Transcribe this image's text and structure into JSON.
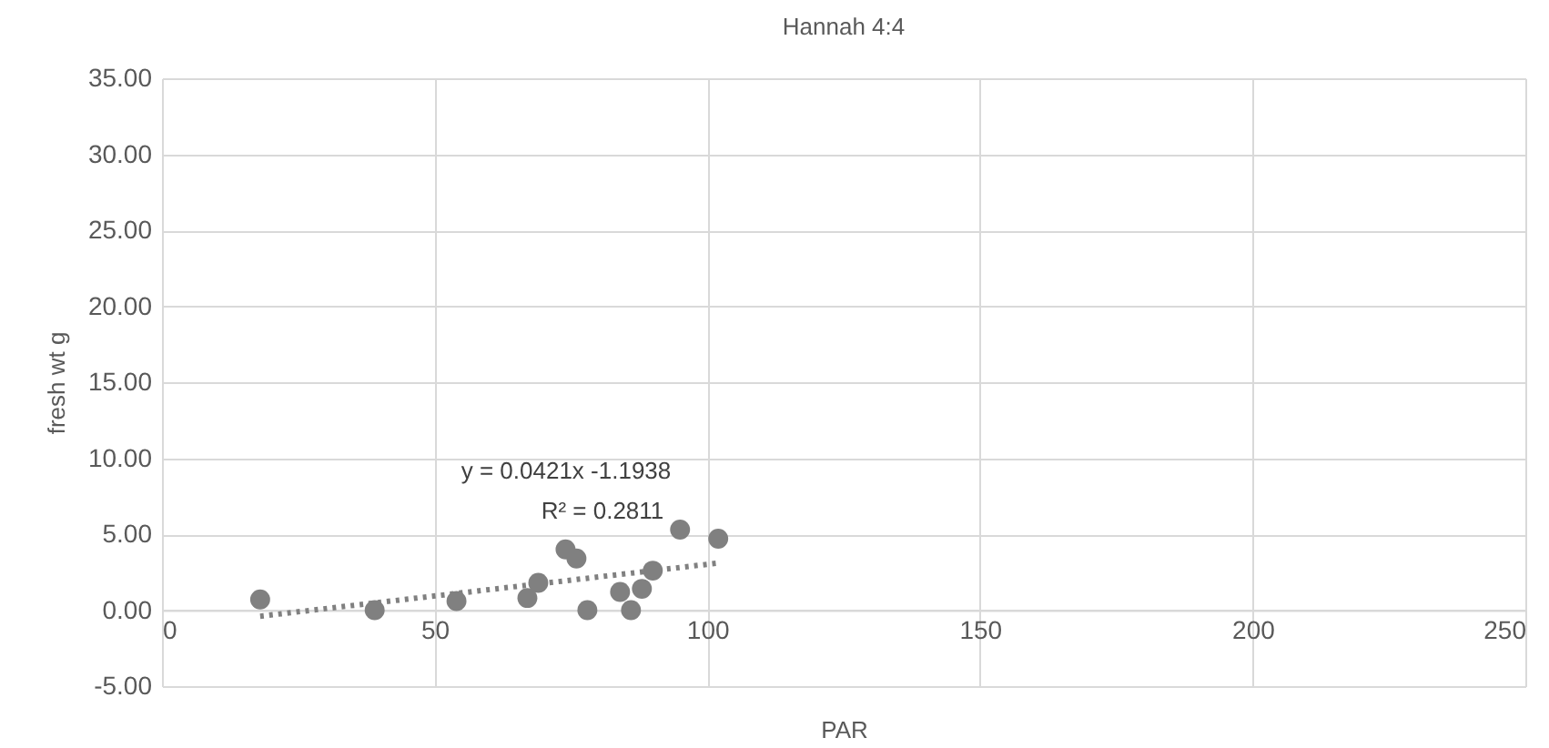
{
  "chart_data": {
    "type": "scatter",
    "title": "Hannah 4:4",
    "xlabel": "PAR",
    "ylabel": "fresh wt g",
    "x": [
      18,
      39,
      54,
      67,
      69,
      74,
      76,
      78,
      84,
      86,
      88,
      90,
      95,
      102
    ],
    "series": [
      {
        "type": "scatter",
        "color": "#808080",
        "marker": "circle",
        "values": [
          0.7,
          0.0,
          0.6,
          0.8,
          1.8,
          4.0,
          3.4,
          0.0,
          1.2,
          0.0,
          1.4,
          2.6,
          5.3,
          4.7
        ]
      },
      {
        "type": "line",
        "color": "#808080",
        "line_style": "dotted",
        "x": [
          18,
          102
        ],
        "values": [
          -0.4,
          3.1
        ]
      }
    ],
    "annotations": [
      "y = 0.0421x -1.1938",
      "R² = 0.2811"
    ],
    "xlim": [
      0,
      250
    ],
    "xticks": [
      0,
      50,
      100,
      150,
      200,
      250
    ],
    "ylim": [
      -5,
      35
    ],
    "yticks": [
      {
        "value": -5,
        "label": "-5.00"
      },
      {
        "value": 0,
        "label": "0.00"
      },
      {
        "value": 5,
        "label": "5.00"
      },
      {
        "value": 10,
        "label": "10.00"
      },
      {
        "value": 15,
        "label": "15.00"
      },
      {
        "value": 20,
        "label": "20.00"
      },
      {
        "value": 25,
        "label": "25.00"
      },
      {
        "value": 30,
        "label": "30.00"
      },
      {
        "value": 35,
        "label": "35.00"
      }
    ],
    "grid": true
  }
}
